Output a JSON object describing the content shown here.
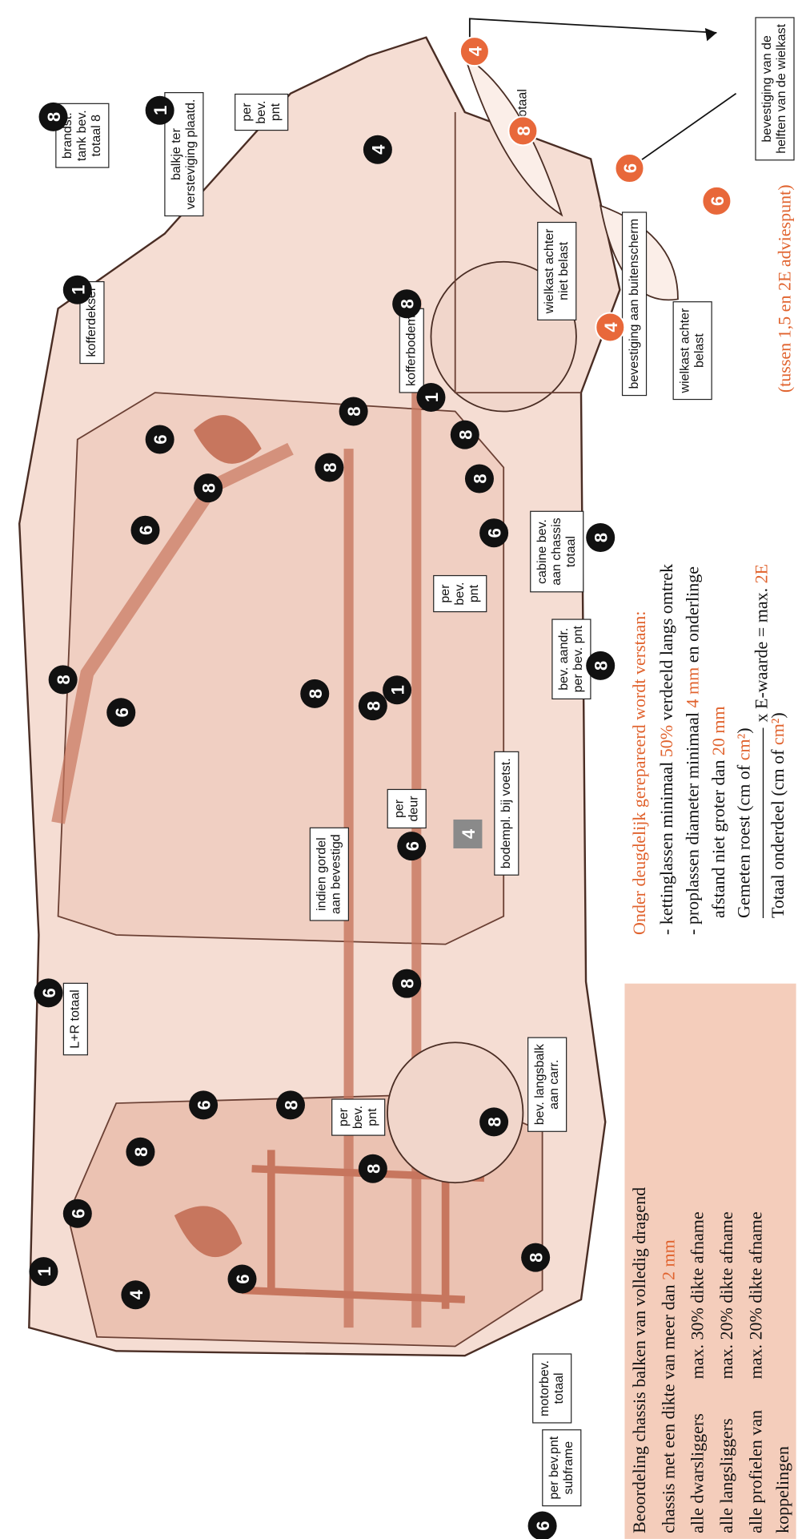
{
  "labels": [
    {
      "lines": [
        "per bev.pnt",
        "subframe"
      ]
    },
    {
      "lines": [
        "motorbev.",
        "totaal"
      ]
    },
    {
      "lines": [
        "bev. langsbalk",
        "aan carr."
      ]
    },
    {
      "lines": [
        "L+R totaal"
      ]
    },
    {
      "lines": [
        "indien gordel",
        "aan bevestigd"
      ]
    },
    {
      "lines": [
        "per",
        "deur"
      ]
    },
    {
      "lines": [
        "bodempl. bij voetst."
      ]
    },
    {
      "lines": [
        "bev. aandr.",
        "per bev. pnt"
      ]
    },
    {
      "lines": [
        "per",
        "bev.",
        "pnt"
      ]
    },
    {
      "lines": [
        "cabine bev.",
        "aan chassis",
        "totaal"
      ]
    },
    {
      "lines": [
        "per",
        "bev.",
        "pnt"
      ]
    },
    {
      "lines": [
        "kofferdeksel"
      ]
    },
    {
      "lines": [
        "kofferbodem"
      ]
    },
    {
      "lines": [
        "balkje ter",
        "versteviging plaatd."
      ]
    },
    {
      "lines": [
        "brandst.",
        "tank bev.",
        "totaal 8"
      ]
    },
    {
      "lines": [
        "per",
        "bev.",
        "pnt"
      ]
    },
    {
      "lines": [
        "bevestiging aan buitenscherm"
      ]
    },
    {
      "lines": [
        "wielkast achter",
        "belast"
      ]
    },
    {
      "lines": [
        "wielkast achter",
        "niet belast"
      ]
    },
    {
      "lines": [
        "bevestiging van de",
        "helften van de wielkast"
      ]
    },
    {
      "lines": [
        "totaal"
      ]
    }
  ],
  "badges": [
    {
      "number": 6,
      "style": "black"
    },
    {
      "number": 8,
      "style": "black"
    },
    {
      "number": 1,
      "style": "black"
    },
    {
      "number": 4,
      "style": "black"
    },
    {
      "number": 6,
      "style": "black"
    },
    {
      "number": 6,
      "style": "black"
    },
    {
      "number": 8,
      "style": "black"
    },
    {
      "number": 6,
      "style": "black"
    },
    {
      "number": 6,
      "style": "black"
    },
    {
      "number": 8,
      "style": "black"
    },
    {
      "number": 8,
      "style": "black"
    },
    {
      "number": 8,
      "style": "black"
    },
    {
      "number": 8,
      "style": "black"
    },
    {
      "number": 6,
      "style": "black"
    },
    {
      "number": 8,
      "style": "black"
    },
    {
      "number": 8,
      "style": "black"
    },
    {
      "number": 6,
      "style": "black"
    },
    {
      "number": 8,
      "style": "black"
    },
    {
      "number": 6,
      "style": "black"
    },
    {
      "number": 8,
      "style": "black"
    },
    {
      "number": 1,
      "style": "black"
    },
    {
      "number": 6,
      "style": "black"
    },
    {
      "number": 8,
      "style": "black"
    },
    {
      "number": 8,
      "style": "black"
    },
    {
      "number": 8,
      "style": "black"
    },
    {
      "number": 1,
      "style": "black"
    },
    {
      "number": 8,
      "style": "black"
    },
    {
      "number": 8,
      "style": "black"
    },
    {
      "number": 6,
      "style": "black"
    },
    {
      "number": 8,
      "style": "black"
    },
    {
      "number": 1,
      "style": "black"
    },
    {
      "number": 8,
      "style": "black"
    },
    {
      "number": 1,
      "style": "black"
    },
    {
      "number": 8,
      "style": "black"
    },
    {
      "number": 4,
      "style": "black"
    },
    {
      "number": 4,
      "style": "orange"
    },
    {
      "number": 8,
      "style": "orange"
    },
    {
      "number": 6,
      "style": "orange"
    },
    {
      "number": 6,
      "style": "orange"
    },
    {
      "number": 4,
      "style": "orange"
    }
  ],
  "square_badge": "4",
  "assessment": {
    "title": "Beoordeling chassis balken van volledig dragend",
    "subtitle": [
      {
        "text": "chassis met een dikte van meer dan "
      },
      {
        "text": "2 mm",
        "highlight": true
      }
    ],
    "rows": [
      {
        "item": "alle dwarsliggers",
        "limit": "max. 30% dikte afname"
      },
      {
        "item": "alle langsliggers",
        "limit": "max. 20% dikte afname"
      },
      {
        "item": "alle profielen van",
        "limit": "max. 20% dikte afname"
      }
    ],
    "last_line": "koppelingen"
  },
  "criteria": {
    "heading": "Onder deugdelijk gerepareerd wordt verstaan:",
    "lines": [
      [
        {
          "text": "- kettinglassen minimaal "
        },
        {
          "text": "50%",
          "highlight": true
        },
        {
          "text": " verdeeld langs omtrek"
        }
      ],
      [
        {
          "text": "- proplassen diameter minimaal "
        },
        {
          "text": "4 mm",
          "highlight": true
        },
        {
          "text": " en onderlinge"
        }
      ],
      [
        {
          "text": "afstand niet groter dan "
        },
        {
          "text": "20 mm",
          "highlight": true
        }
      ]
    ],
    "numerator": [
      {
        "text": "Gemeten roest (cm of "
      },
      {
        "text": "cm²",
        "highlight": true
      },
      {
        "text": ")"
      }
    ],
    "denominator": [
      {
        "text": "Totaal onderdeel (cm of "
      },
      {
        "text": "cm²",
        "highlight": true
      },
      {
        "text": ")"
      }
    ],
    "result": [
      {
        "text": "x E-waarde = max. "
      },
      {
        "text": "2E",
        "highlight": true
      }
    ],
    "note": "(tussen 1,5 en 2E adviespunt)"
  }
}
